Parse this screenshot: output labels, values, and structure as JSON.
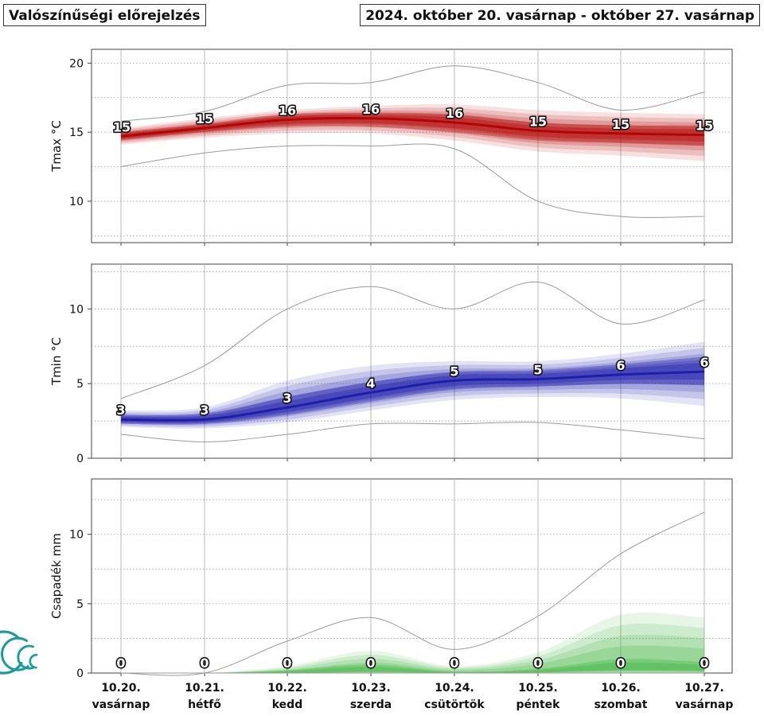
{
  "header": {
    "title_left": "Valószínűségi előrejelzés",
    "title_right": "2024. október 20. vasárnap - október 27. vasárnap"
  },
  "colors": {
    "tmax": "#b30000",
    "tmin": "#1a1aaa",
    "precip": "#3cb43c",
    "logo": "#1a9a9a"
  },
  "chart_data": [
    {
      "type": "area",
      "id": "tmax",
      "ylabel": "Tmax °C",
      "ylim": [
        7,
        21
      ],
      "yticks": [
        10,
        15,
        20
      ],
      "x": [
        "10.20.",
        "10.21.",
        "10.22.",
        "10.23.",
        "10.24.",
        "10.25.",
        "10.26.",
        "10.27."
      ],
      "x_days": [
        "vasárnap",
        "hétfő",
        "kedd",
        "szerda",
        "csütörtök",
        "péntek",
        "szombat",
        "vasárnap"
      ],
      "grid": true,
      "series": [
        {
          "role": "median",
          "values": [
            14.7,
            15.3,
            15.9,
            16.0,
            15.7,
            15.1,
            14.9,
            14.8
          ]
        },
        {
          "role": "band_inner",
          "low": [
            14.4,
            15.0,
            15.4,
            15.4,
            15.0,
            14.4,
            14.2,
            14.0
          ],
          "high": [
            15.0,
            15.6,
            16.3,
            16.4,
            16.3,
            15.7,
            15.5,
            15.5
          ]
        },
        {
          "role": "band_outer",
          "low": [
            14.1,
            14.6,
            14.9,
            14.9,
            14.4,
            13.6,
            13.3,
            12.9
          ],
          "high": [
            15.3,
            16.0,
            16.6,
            16.9,
            17.0,
            16.6,
            16.4,
            16.3
          ]
        },
        {
          "role": "extreme_min",
          "values": [
            12.5,
            13.5,
            14.0,
            14.0,
            13.8,
            10.0,
            8.9,
            8.9
          ]
        },
        {
          "role": "extreme_max",
          "values": [
            15.8,
            16.5,
            18.4,
            18.6,
            19.8,
            18.6,
            16.6,
            17.9
          ]
        }
      ],
      "labels": [
        "15",
        "15",
        "16",
        "16",
        "16",
        "15",
        "15",
        "15"
      ]
    },
    {
      "type": "area",
      "id": "tmin",
      "ylabel": "Tmin °C",
      "ylim": [
        0,
        13
      ],
      "yticks": [
        0,
        5,
        10
      ],
      "x": [
        "10.20.",
        "10.21.",
        "10.22.",
        "10.23.",
        "10.24.",
        "10.25.",
        "10.26.",
        "10.27."
      ],
      "grid": true,
      "series": [
        {
          "role": "median",
          "values": [
            2.6,
            2.6,
            3.4,
            4.4,
            5.2,
            5.3,
            5.6,
            5.8
          ]
        },
        {
          "role": "band_inner",
          "low": [
            2.3,
            2.3,
            2.9,
            3.8,
            4.6,
            4.8,
            5.0,
            4.9
          ],
          "high": [
            2.9,
            3.0,
            4.1,
            5.1,
            5.8,
            5.9,
            6.3,
            6.8
          ]
        },
        {
          "role": "band_outer",
          "low": [
            2.1,
            2.0,
            2.4,
            3.2,
            3.9,
            4.1,
            4.0,
            3.5
          ],
          "high": [
            3.2,
            3.4,
            5.2,
            6.2,
            6.5,
            6.5,
            7.0,
            7.8
          ]
        },
        {
          "role": "extreme_min",
          "values": [
            1.6,
            1.1,
            1.6,
            2.3,
            2.3,
            2.4,
            1.9,
            1.3
          ]
        },
        {
          "role": "extreme_max",
          "values": [
            4.0,
            6.2,
            10.0,
            11.5,
            10.0,
            11.8,
            9.0,
            10.6
          ]
        }
      ],
      "labels": [
        "3",
        "3",
        "3",
        "4",
        "5",
        "5",
        "6",
        "6"
      ]
    },
    {
      "type": "area",
      "id": "precip",
      "ylabel": "Csapadék mm",
      "ylim": [
        0,
        14
      ],
      "yticks": [
        0,
        5,
        10
      ],
      "x": [
        "10.20.",
        "10.21.",
        "10.22.",
        "10.23.",
        "10.24.",
        "10.25.",
        "10.26.",
        "10.27."
      ],
      "x_days": [
        "vasárnap",
        "hétfő",
        "kedd",
        "szerda",
        "csütörtök",
        "péntek",
        "szombat",
        "vasárnap"
      ],
      "grid": true,
      "series": [
        {
          "role": "median",
          "values": [
            0,
            0,
            0,
            0.2,
            0,
            0.1,
            0.4,
            0.3
          ]
        },
        {
          "role": "band_inner",
          "low": [
            0,
            0,
            0,
            0,
            0,
            0,
            0,
            0
          ],
          "high": [
            0,
            0,
            0.2,
            0.6,
            0.1,
            0.3,
            1.0,
            0.8
          ]
        },
        {
          "role": "band_outer",
          "low": [
            0,
            0,
            0,
            0,
            0,
            0,
            0,
            0
          ],
          "high": [
            0,
            0,
            0.5,
            1.6,
            0.5,
            1.5,
            4.2,
            4.0
          ]
        },
        {
          "role": "extreme_min",
          "values": [
            0,
            0,
            0,
            0,
            0,
            0,
            0,
            0
          ]
        },
        {
          "role": "extreme_max",
          "values": [
            0,
            0,
            2.3,
            4.0,
            1.7,
            4.1,
            8.6,
            11.6
          ]
        }
      ],
      "labels": [
        "0",
        "0",
        "0",
        "0",
        "0",
        "0",
        "0",
        "0"
      ]
    }
  ]
}
